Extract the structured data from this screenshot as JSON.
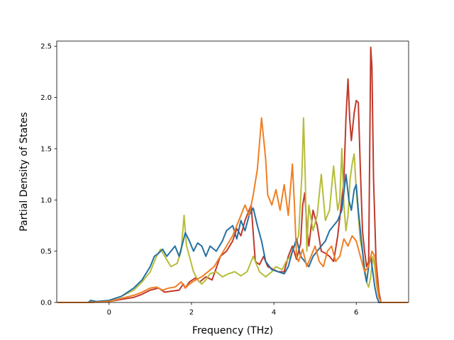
{
  "chart_data": {
    "type": "line",
    "title": "",
    "xlabel": "Frequency (THz)",
    "ylabel": "Partial Density of States",
    "xlim": [
      -1.27,
      7.27
    ],
    "ylim": [
      0,
      2.55
    ],
    "xticks": [
      0,
      2,
      4,
      6
    ],
    "yticks": [
      0.0,
      0.5,
      1.0,
      1.5,
      2.0,
      2.5
    ],
    "xtick_labels": [
      "0",
      "2",
      "4",
      "6"
    ],
    "ytick_labels": [
      "0.0",
      "0.5",
      "1.0",
      "1.5",
      "2.0",
      "2.5"
    ],
    "grid": false,
    "legend": "none",
    "series": [
      {
        "color": "#c0392b",
        "x": [
          -1.25,
          -0.5,
          0.0,
          0.3,
          0.6,
          0.8,
          1.0,
          1.2,
          1.35,
          1.5,
          1.7,
          1.8,
          1.85,
          1.95,
          2.1,
          2.2,
          2.35,
          2.5,
          2.7,
          2.85,
          3.0,
          3.1,
          3.2,
          3.3,
          3.45,
          3.55,
          3.65,
          3.75,
          3.85,
          3.95,
          4.1,
          4.25,
          4.35,
          4.45,
          4.55,
          4.65,
          4.7,
          4.75,
          4.8,
          4.85,
          4.95,
          5.05,
          5.15,
          5.25,
          5.35,
          5.45,
          5.55,
          5.62,
          5.7,
          5.75,
          5.8,
          5.84,
          5.88,
          5.95,
          6.0,
          6.05,
          6.1,
          6.15,
          6.2,
          6.25,
          6.3,
          6.35,
          6.38,
          6.42,
          6.48,
          6.55,
          6.6,
          6.7,
          7.25
        ],
        "y": [
          0.0,
          0.0,
          0.01,
          0.03,
          0.05,
          0.08,
          0.12,
          0.14,
          0.1,
          0.11,
          0.12,
          0.18,
          0.14,
          0.2,
          0.24,
          0.2,
          0.25,
          0.22,
          0.45,
          0.5,
          0.6,
          0.72,
          0.65,
          0.8,
          0.95,
          0.4,
          0.37,
          0.45,
          0.35,
          0.33,
          0.3,
          0.3,
          0.45,
          0.55,
          0.42,
          0.58,
          0.95,
          1.07,
          0.75,
          0.55,
          0.9,
          0.75,
          0.5,
          0.48,
          0.45,
          0.4,
          0.65,
          0.9,
          1.2,
          1.8,
          2.18,
          1.8,
          1.58,
          1.85,
          1.97,
          1.95,
          1.3,
          0.7,
          0.5,
          0.35,
          0.4,
          2.49,
          2.3,
          1.2,
          0.4,
          0.1,
          0.0,
          0.0,
          0.0
        ]
      },
      {
        "color": "#b5bd3a",
        "x": [
          -1.25,
          -0.5,
          0.0,
          0.3,
          0.6,
          0.8,
          1.0,
          1.15,
          1.25,
          1.35,
          1.5,
          1.65,
          1.75,
          1.82,
          1.88,
          1.95,
          2.05,
          2.15,
          2.25,
          2.35,
          2.45,
          2.6,
          2.75,
          2.9,
          3.05,
          3.2,
          3.35,
          3.5,
          3.65,
          3.8,
          3.95,
          4.05,
          4.2,
          4.3,
          4.4,
          4.5,
          4.6,
          4.68,
          4.72,
          4.76,
          4.8,
          4.85,
          4.95,
          5.05,
          5.15,
          5.25,
          5.35,
          5.45,
          5.55,
          5.6,
          5.65,
          5.7,
          5.75,
          5.8,
          5.85,
          5.9,
          5.95,
          6.0,
          6.05,
          6.1,
          6.15,
          6.2,
          6.25,
          6.3,
          6.35,
          6.4,
          6.45,
          6.5,
          6.55,
          6.6,
          6.7,
          7.25
        ],
        "y": [
          0.0,
          0.0,
          0.02,
          0.06,
          0.12,
          0.2,
          0.3,
          0.45,
          0.52,
          0.45,
          0.35,
          0.38,
          0.5,
          0.85,
          0.55,
          0.45,
          0.3,
          0.22,
          0.18,
          0.22,
          0.28,
          0.3,
          0.25,
          0.28,
          0.3,
          0.26,
          0.3,
          0.45,
          0.3,
          0.25,
          0.3,
          0.35,
          0.32,
          0.4,
          0.45,
          0.55,
          0.65,
          1.25,
          1.8,
          1.25,
          0.5,
          0.95,
          0.7,
          0.85,
          1.25,
          0.8,
          0.9,
          1.33,
          0.9,
          1.0,
          1.5,
          0.95,
          0.7,
          0.85,
          1.2,
          1.35,
          1.45,
          1.1,
          0.85,
          0.6,
          0.5,
          0.35,
          0.2,
          0.15,
          0.25,
          0.45,
          0.35,
          0.15,
          0.05,
          0.0,
          0.0,
          0.0
        ]
      },
      {
        "color": "#2471a3",
        "x": [
          -1.25,
          -0.5,
          -0.45,
          -0.3,
          0.0,
          0.3,
          0.6,
          0.8,
          1.0,
          1.1,
          1.2,
          1.3,
          1.4,
          1.5,
          1.6,
          1.7,
          1.8,
          1.85,
          1.95,
          2.05,
          2.15,
          2.25,
          2.35,
          2.45,
          2.6,
          2.75,
          2.85,
          3.0,
          3.1,
          3.2,
          3.3,
          3.4,
          3.5,
          3.6,
          3.7,
          3.8,
          3.95,
          4.1,
          4.25,
          4.35,
          4.45,
          4.55,
          4.65,
          4.75,
          4.85,
          4.95,
          5.05,
          5.15,
          5.25,
          5.35,
          5.45,
          5.55,
          5.65,
          5.75,
          5.82,
          5.88,
          5.95,
          6.0,
          6.05,
          6.1,
          6.15,
          6.2,
          6.25,
          6.3,
          6.35,
          6.4,
          6.45,
          6.5,
          6.55,
          6.6,
          6.7,
          7.25
        ],
        "y": [
          0.0,
          0.0,
          0.02,
          0.01,
          0.02,
          0.06,
          0.14,
          0.22,
          0.35,
          0.45,
          0.48,
          0.52,
          0.45,
          0.5,
          0.55,
          0.45,
          0.6,
          0.68,
          0.6,
          0.5,
          0.58,
          0.55,
          0.45,
          0.55,
          0.5,
          0.6,
          0.7,
          0.75,
          0.62,
          0.8,
          0.7,
          0.85,
          0.92,
          0.75,
          0.6,
          0.4,
          0.32,
          0.3,
          0.28,
          0.35,
          0.5,
          0.62,
          0.45,
          0.4,
          0.35,
          0.45,
          0.5,
          0.55,
          0.6,
          0.7,
          0.75,
          0.8,
          0.9,
          1.25,
          1.0,
          0.9,
          1.1,
          1.15,
          0.9,
          0.7,
          0.5,
          0.3,
          0.2,
          0.35,
          0.45,
          0.3,
          0.15,
          0.05,
          0.0,
          0.0,
          0.0,
          0.0
        ]
      },
      {
        "color": "#f07f23",
        "x": [
          -1.25,
          -0.5,
          0.0,
          0.3,
          0.6,
          0.8,
          1.0,
          1.15,
          1.3,
          1.45,
          1.6,
          1.75,
          1.85,
          1.95,
          2.1,
          2.25,
          2.4,
          2.55,
          2.7,
          2.85,
          3.0,
          3.15,
          3.3,
          3.4,
          3.5,
          3.6,
          3.65,
          3.7,
          3.75,
          3.8,
          3.85,
          3.95,
          4.05,
          4.15,
          4.25,
          4.35,
          4.45,
          4.5,
          4.55,
          4.6,
          4.7,
          4.8,
          4.9,
          5.0,
          5.1,
          5.2,
          5.3,
          5.4,
          5.5,
          5.6,
          5.7,
          5.8,
          5.9,
          6.0,
          6.1,
          6.2,
          6.3,
          6.38,
          6.45,
          6.5,
          6.55,
          6.6,
          6.7,
          7.25
        ],
        "y": [
          0.0,
          0.0,
          0.01,
          0.04,
          0.07,
          0.1,
          0.14,
          0.15,
          0.12,
          0.14,
          0.15,
          0.2,
          0.14,
          0.18,
          0.22,
          0.25,
          0.3,
          0.35,
          0.45,
          0.55,
          0.65,
          0.8,
          0.95,
          0.85,
          1.05,
          1.3,
          1.55,
          1.8,
          1.6,
          1.4,
          1.05,
          0.95,
          1.1,
          0.9,
          1.15,
          0.85,
          1.35,
          0.95,
          0.45,
          0.4,
          0.52,
          0.35,
          0.45,
          0.55,
          0.4,
          0.35,
          0.5,
          0.55,
          0.4,
          0.45,
          0.62,
          0.55,
          0.65,
          0.6,
          0.45,
          0.3,
          0.35,
          0.5,
          0.45,
          0.2,
          0.05,
          0.0,
          0.0,
          0.0
        ]
      }
    ]
  }
}
